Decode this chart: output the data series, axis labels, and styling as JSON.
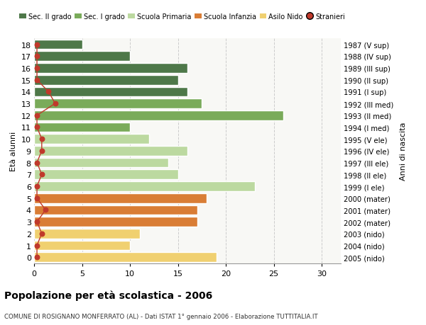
{
  "ages": [
    18,
    17,
    16,
    15,
    14,
    13,
    12,
    11,
    10,
    9,
    8,
    7,
    6,
    5,
    4,
    3,
    2,
    1,
    0
  ],
  "values": [
    5,
    10,
    16,
    15,
    16,
    17.5,
    26,
    10,
    12,
    16,
    14,
    15,
    23,
    18,
    17,
    17,
    11,
    10,
    19
  ],
  "stranieri": [
    0.3,
    0.3,
    0.3,
    0.3,
    1.5,
    2.2,
    0.3,
    0.3,
    0.8,
    0.8,
    0.3,
    0.8,
    0.3,
    0.3,
    1.2,
    0.3,
    0.8,
    0.3,
    0.3
  ],
  "bar_colors": [
    "#4e7849",
    "#4e7849",
    "#4e7849",
    "#4e7849",
    "#4e7849",
    "#7aab5a",
    "#7aab5a",
    "#7aab5a",
    "#bcd9a0",
    "#bcd9a0",
    "#bcd9a0",
    "#bcd9a0",
    "#bcd9a0",
    "#d97d35",
    "#d97d35",
    "#d97d35",
    "#f0d070",
    "#f0d070",
    "#f0d070"
  ],
  "right_labels": [
    "1987 (V sup)",
    "1988 (IV sup)",
    "1989 (III sup)",
    "1990 (II sup)",
    "1991 (I sup)",
    "1992 (III med)",
    "1993 (II med)",
    "1994 (I med)",
    "1995 (V ele)",
    "1996 (IV ele)",
    "1997 (III ele)",
    "1998 (II ele)",
    "1999 (I ele)",
    "2000 (mater)",
    "2001 (mater)",
    "2002 (mater)",
    "2003 (nido)",
    "2004 (nido)",
    "2005 (nido)"
  ],
  "legend_labels": [
    "Sec. II grado",
    "Sec. I grado",
    "Scuola Primaria",
    "Scuola Infanzia",
    "Asilo Nido",
    "Stranieri"
  ],
  "legend_colors": [
    "#4e7849",
    "#7aab5a",
    "#bcd9a0",
    "#d97d35",
    "#f0d070",
    "#c0392b"
  ],
  "ylabel": "Età alunni",
  "right_ylabel": "Anni di nascita",
  "title": "Popolazione per età scolastica - 2006",
  "subtitle": "COMUNE DI ROSIGNANO MONFERRATO (AL) - Dati ISTAT 1° gennaio 2006 - Elaborazione TUTTITALIA.IT",
  "xlim": [
    0,
    32
  ],
  "xticks": [
    0,
    5,
    10,
    15,
    20,
    25,
    30
  ],
  "bg_color": "#ffffff",
  "plot_bg_color": "#f8f8f5",
  "stranieri_color": "#c0392b",
  "grid_color": "#cccccc"
}
